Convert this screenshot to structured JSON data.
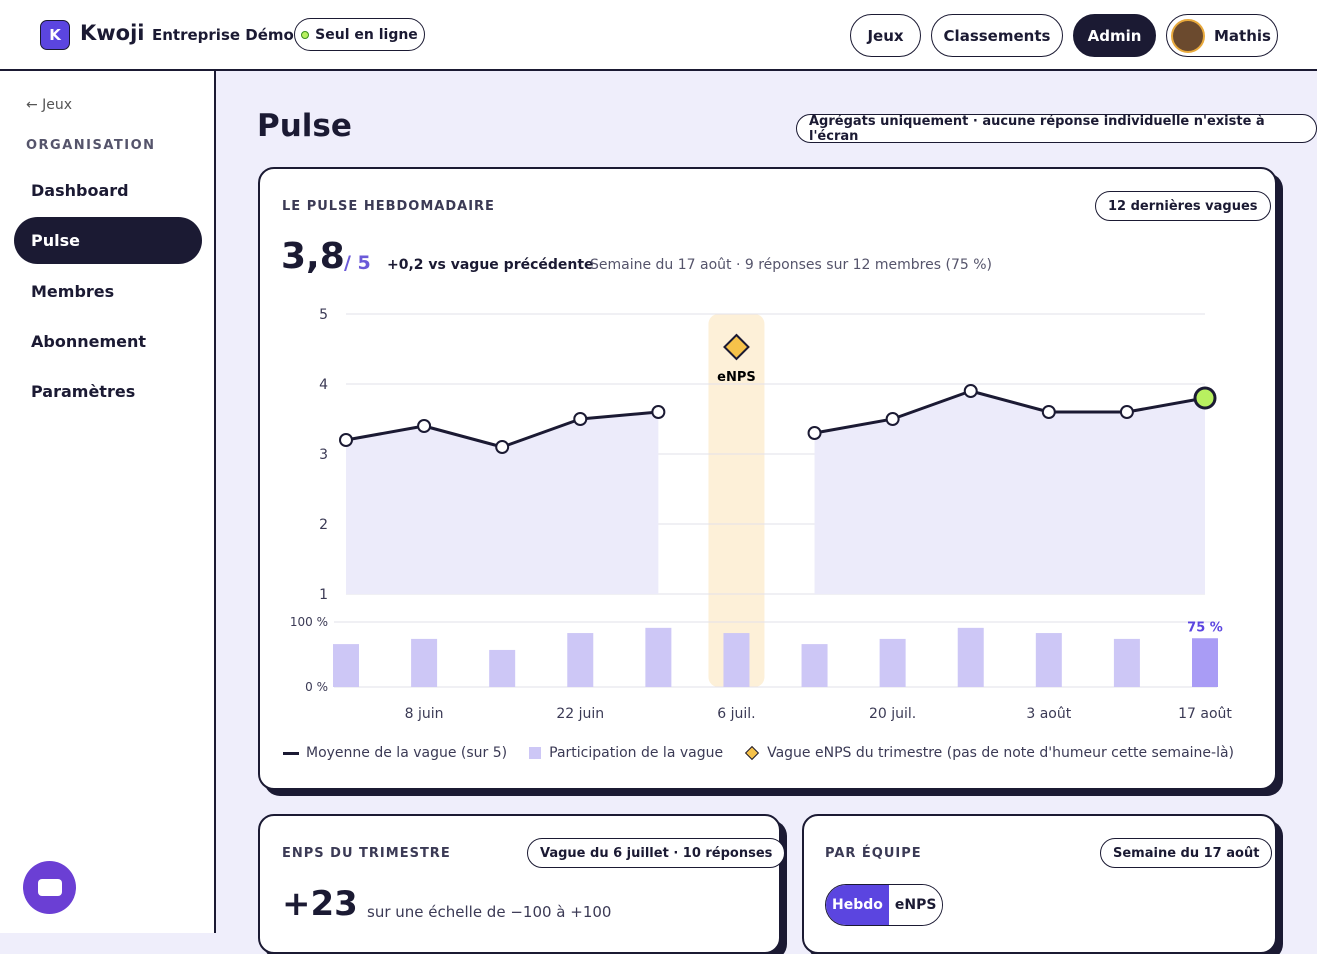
{
  "header": {
    "brand": "Kwoji",
    "logo": "K",
    "company": "Entreprise Démo",
    "status": "Seul en ligne",
    "nav": [
      "Jeux",
      "Classements",
      "Admin"
    ],
    "user": "Mathis"
  },
  "sidebar": {
    "back": "← Jeux",
    "section": "ORGANISATION",
    "items": [
      "Dashboard",
      "Pulse",
      "Membres",
      "Abonnement",
      "Paramètres"
    ]
  },
  "page": {
    "title": "Pulse",
    "note": "Agrégats uniquement · aucune réponse individuelle n'existe à l'écran"
  },
  "pulse": {
    "title": "LE PULSE HEBDOMADAIRE",
    "badge": "12 dernières vagues",
    "score": "3,8",
    "scale": "/ 5",
    "delta": "+0,2 vs vague précédente",
    "detail": "Semaine du 17 août · 9 réponses sur 12 membres (75 %)",
    "chart": {
      "type": "line",
      "categories": [
        null,
        "8 juin",
        null,
        "22 juin",
        null,
        "6 juil.",
        null,
        "20 juil.",
        null,
        "3 août",
        null,
        "17 août"
      ],
      "series": [
        {
          "name": "Moyenne de la vague (sur 5)",
          "color": "#1b1a33",
          "values": [
            3.2,
            3.4,
            3.1,
            3.5,
            3.6,
            null,
            3.3,
            3.5,
            3.9,
            3.6,
            3.6,
            3.8
          ]
        },
        {
          "name": "Participation de la vague",
          "color": "#cdc7f6",
          "axis": "y2",
          "values": [
            66,
            74,
            57,
            83,
            91,
            83,
            66,
            74,
            91,
            83,
            74,
            75
          ],
          "value_labels": [
            null,
            null,
            null,
            null,
            null,
            null,
            null,
            null,
            null,
            null,
            null,
            "75 %"
          ]
        }
      ],
      "ylim": [
        1,
        5
      ],
      "yticks": [
        1,
        2,
        3,
        4,
        5
      ],
      "y2lim": [
        0,
        100
      ],
      "y2ticks": [
        {
          "value": 0,
          "label": "0 %"
        },
        {
          "value": 100,
          "label": "100 %"
        }
      ],
      "event": {
        "label": "eNPS",
        "legend": "Vague eNPS du trimestre (pas de note d'humeur cette semaine-là)"
      },
      "grid": true
    }
  },
  "enps": {
    "title": "ENPS DU TRIMESTRE",
    "badge": "Vague du 6 juillet · 10 réponses",
    "score": "+23",
    "scale": "sur une échelle de −100 à +100"
  },
  "team": {
    "title": "PAR ÉQUIPE",
    "badge": "Semaine du 17 août",
    "toggle": [
      "Hebdo",
      "eNPS"
    ]
  }
}
